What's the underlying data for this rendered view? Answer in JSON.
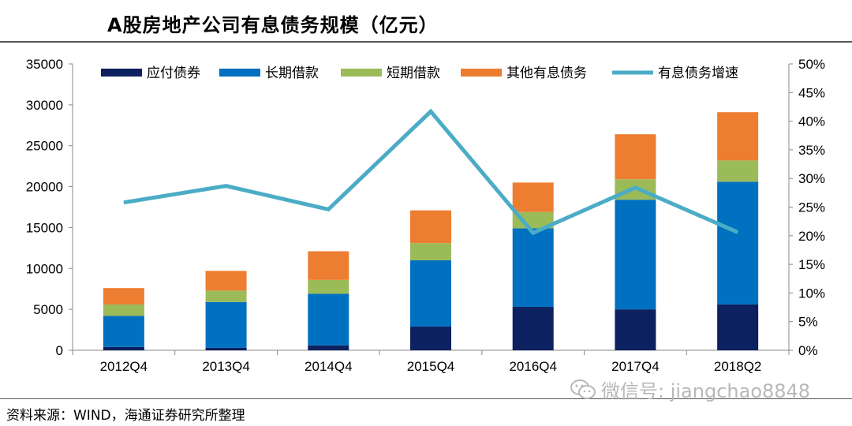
{
  "title": "A股房地产公司有息债务规模（亿元）",
  "source_note": "资料来源：WIND，海通证券研究所整理",
  "watermark": {
    "text": "微信号: jiangchao8848",
    "icon": "wechat-icon"
  },
  "chart_data": {
    "type": "bar",
    "stacked": true,
    "categories": [
      "2012Q4",
      "2013Q4",
      "2014Q4",
      "2015Q4",
      "2016Q4",
      "2017Q4",
      "2018Q2"
    ],
    "series": [
      {
        "name": "应付债券",
        "color": "#0d2060",
        "values": [
          400,
          300,
          600,
          2900,
          5300,
          5000,
          5600
        ]
      },
      {
        "name": "长期借款",
        "color": "#0070c0",
        "values": [
          3800,
          5600,
          6300,
          8100,
          9600,
          13400,
          15000
        ]
      },
      {
        "name": "短期借款",
        "color": "#9bbb59",
        "values": [
          1400,
          1400,
          1700,
          2100,
          2000,
          2500,
          2600
        ]
      },
      {
        "name": "其他有息债务",
        "color": "#ed7d31",
        "values": [
          2000,
          2400,
          3500,
          4000,
          3600,
          5500,
          5900
        ]
      }
    ],
    "line_series": {
      "name": "有息债务增速",
      "color": "#4bacc6",
      "values": [
        25.8,
        28.7,
        24.6,
        41.7,
        20.5,
        28.4,
        20.6
      ]
    },
    "y_left": {
      "min": 0,
      "max": 35000,
      "step": 5000,
      "ticks": [
        "0",
        "5000",
        "10000",
        "15000",
        "20000",
        "25000",
        "30000",
        "35000"
      ]
    },
    "y_right": {
      "min": 0,
      "max": 50,
      "step": 5,
      "ticks": [
        "0%",
        "5%",
        "10%",
        "15%",
        "20%",
        "25%",
        "30%",
        "35%",
        "40%",
        "45%",
        "50%"
      ]
    },
    "legend_position": "top",
    "grid": false
  }
}
